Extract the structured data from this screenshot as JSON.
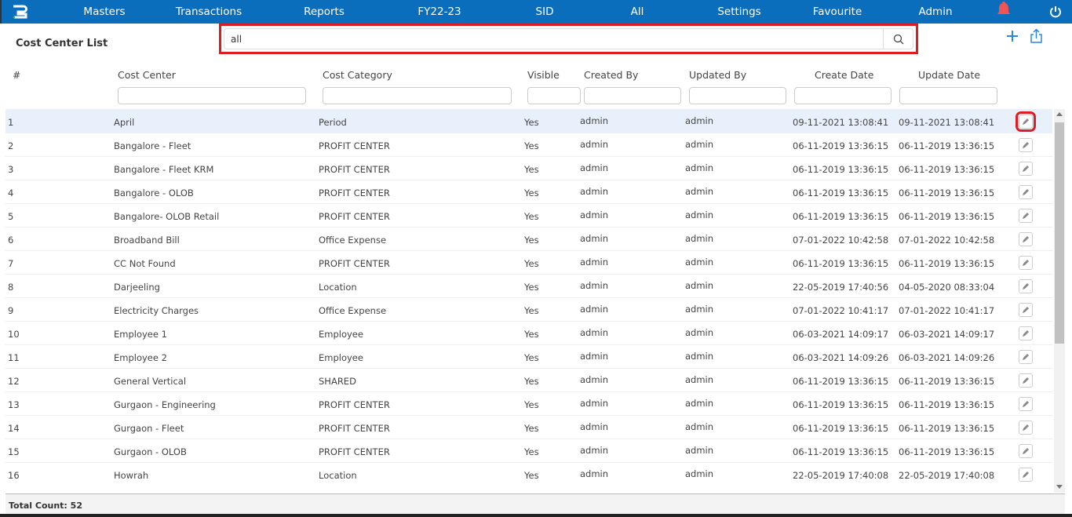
{
  "nav": {
    "items": [
      "Masters",
      "Transactions",
      "Reports",
      "FY22-23",
      "SID",
      "All",
      "Settings",
      "Favourite",
      "Admin"
    ]
  },
  "page": {
    "title": "Cost Center List"
  },
  "search": {
    "value": "all"
  },
  "columns": [
    "#",
    "Cost Center",
    "Cost Category",
    "Visible",
    "Created By",
    "Updated By",
    "Create Date",
    "Update Date"
  ],
  "rows": [
    [
      "1",
      "April",
      "Period",
      "Yes",
      "admin",
      "admin",
      "09-11-2021 13:08:41",
      "09-11-2021 13:08:41"
    ],
    [
      "2",
      "Bangalore - Fleet",
      "PROFIT CENTER",
      "Yes",
      "admin",
      "admin",
      "06-11-2019 13:36:15",
      "06-11-2019 13:36:15"
    ],
    [
      "3",
      "Bangalore - Fleet KRM",
      "PROFIT CENTER",
      "Yes",
      "admin",
      "admin",
      "06-11-2019 13:36:15",
      "06-11-2019 13:36:15"
    ],
    [
      "4",
      "Bangalore - OLOB",
      "PROFIT CENTER",
      "Yes",
      "admin",
      "admin",
      "06-11-2019 13:36:15",
      "06-11-2019 13:36:15"
    ],
    [
      "5",
      "Bangalore- OLOB Retail",
      "PROFIT CENTER",
      "Yes",
      "admin",
      "admin",
      "06-11-2019 13:36:15",
      "06-11-2019 13:36:15"
    ],
    [
      "6",
      "Broadband Bill",
      "Office Expense",
      "Yes",
      "admin",
      "admin",
      "07-01-2022 10:42:58",
      "07-01-2022 10:42:58"
    ],
    [
      "7",
      "CC Not Found",
      "PROFIT CENTER",
      "Yes",
      "admin",
      "admin",
      "06-11-2019 13:36:15",
      "06-11-2019 13:36:15"
    ],
    [
      "8",
      "Darjeeling",
      "Location",
      "Yes",
      "admin",
      "admin",
      "22-05-2019 17:40:56",
      "04-05-2020 08:33:04"
    ],
    [
      "9",
      "Electricity Charges",
      "Office Expense",
      "Yes",
      "admin",
      "admin",
      "07-01-2022 10:41:17",
      "07-01-2022 10:41:17"
    ],
    [
      "10",
      "Employee 1",
      "Employee",
      "Yes",
      "admin",
      "admin",
      "06-03-2021 14:09:17",
      "06-03-2021 14:09:17"
    ],
    [
      "11",
      "Employee 2",
      "Employee",
      "Yes",
      "admin",
      "admin",
      "06-03-2021 14:09:26",
      "06-03-2021 14:09:26"
    ],
    [
      "12",
      "General Vertical",
      "SHARED",
      "Yes",
      "admin",
      "admin",
      "06-11-2019 13:36:15",
      "06-11-2019 13:36:15"
    ],
    [
      "13",
      "Gurgaon - Engineering",
      "PROFIT CENTER",
      "Yes",
      "admin",
      "admin",
      "06-11-2019 13:36:15",
      "06-11-2019 13:36:15"
    ],
    [
      "14",
      "Gurgaon - Fleet",
      "PROFIT CENTER",
      "Yes",
      "admin",
      "admin",
      "06-11-2019 13:36:15",
      "06-11-2019 13:36:15"
    ],
    [
      "15",
      "Gurgaon - OLOB",
      "PROFIT CENTER",
      "Yes",
      "admin",
      "admin",
      "06-11-2019 13:36:15",
      "06-11-2019 13:36:15"
    ],
    [
      "16",
      "Howrah",
      "Location",
      "Yes",
      "admin",
      "admin",
      "22-05-2019 17:40:08",
      "22-05-2019 17:40:08"
    ]
  ],
  "footer": {
    "total": "Total Count: 52"
  },
  "colors": {
    "nav": "#0a6ebd",
    "highlight": "#e01b24",
    "accent": "#2a8ad4",
    "bell": "#f05454"
  }
}
